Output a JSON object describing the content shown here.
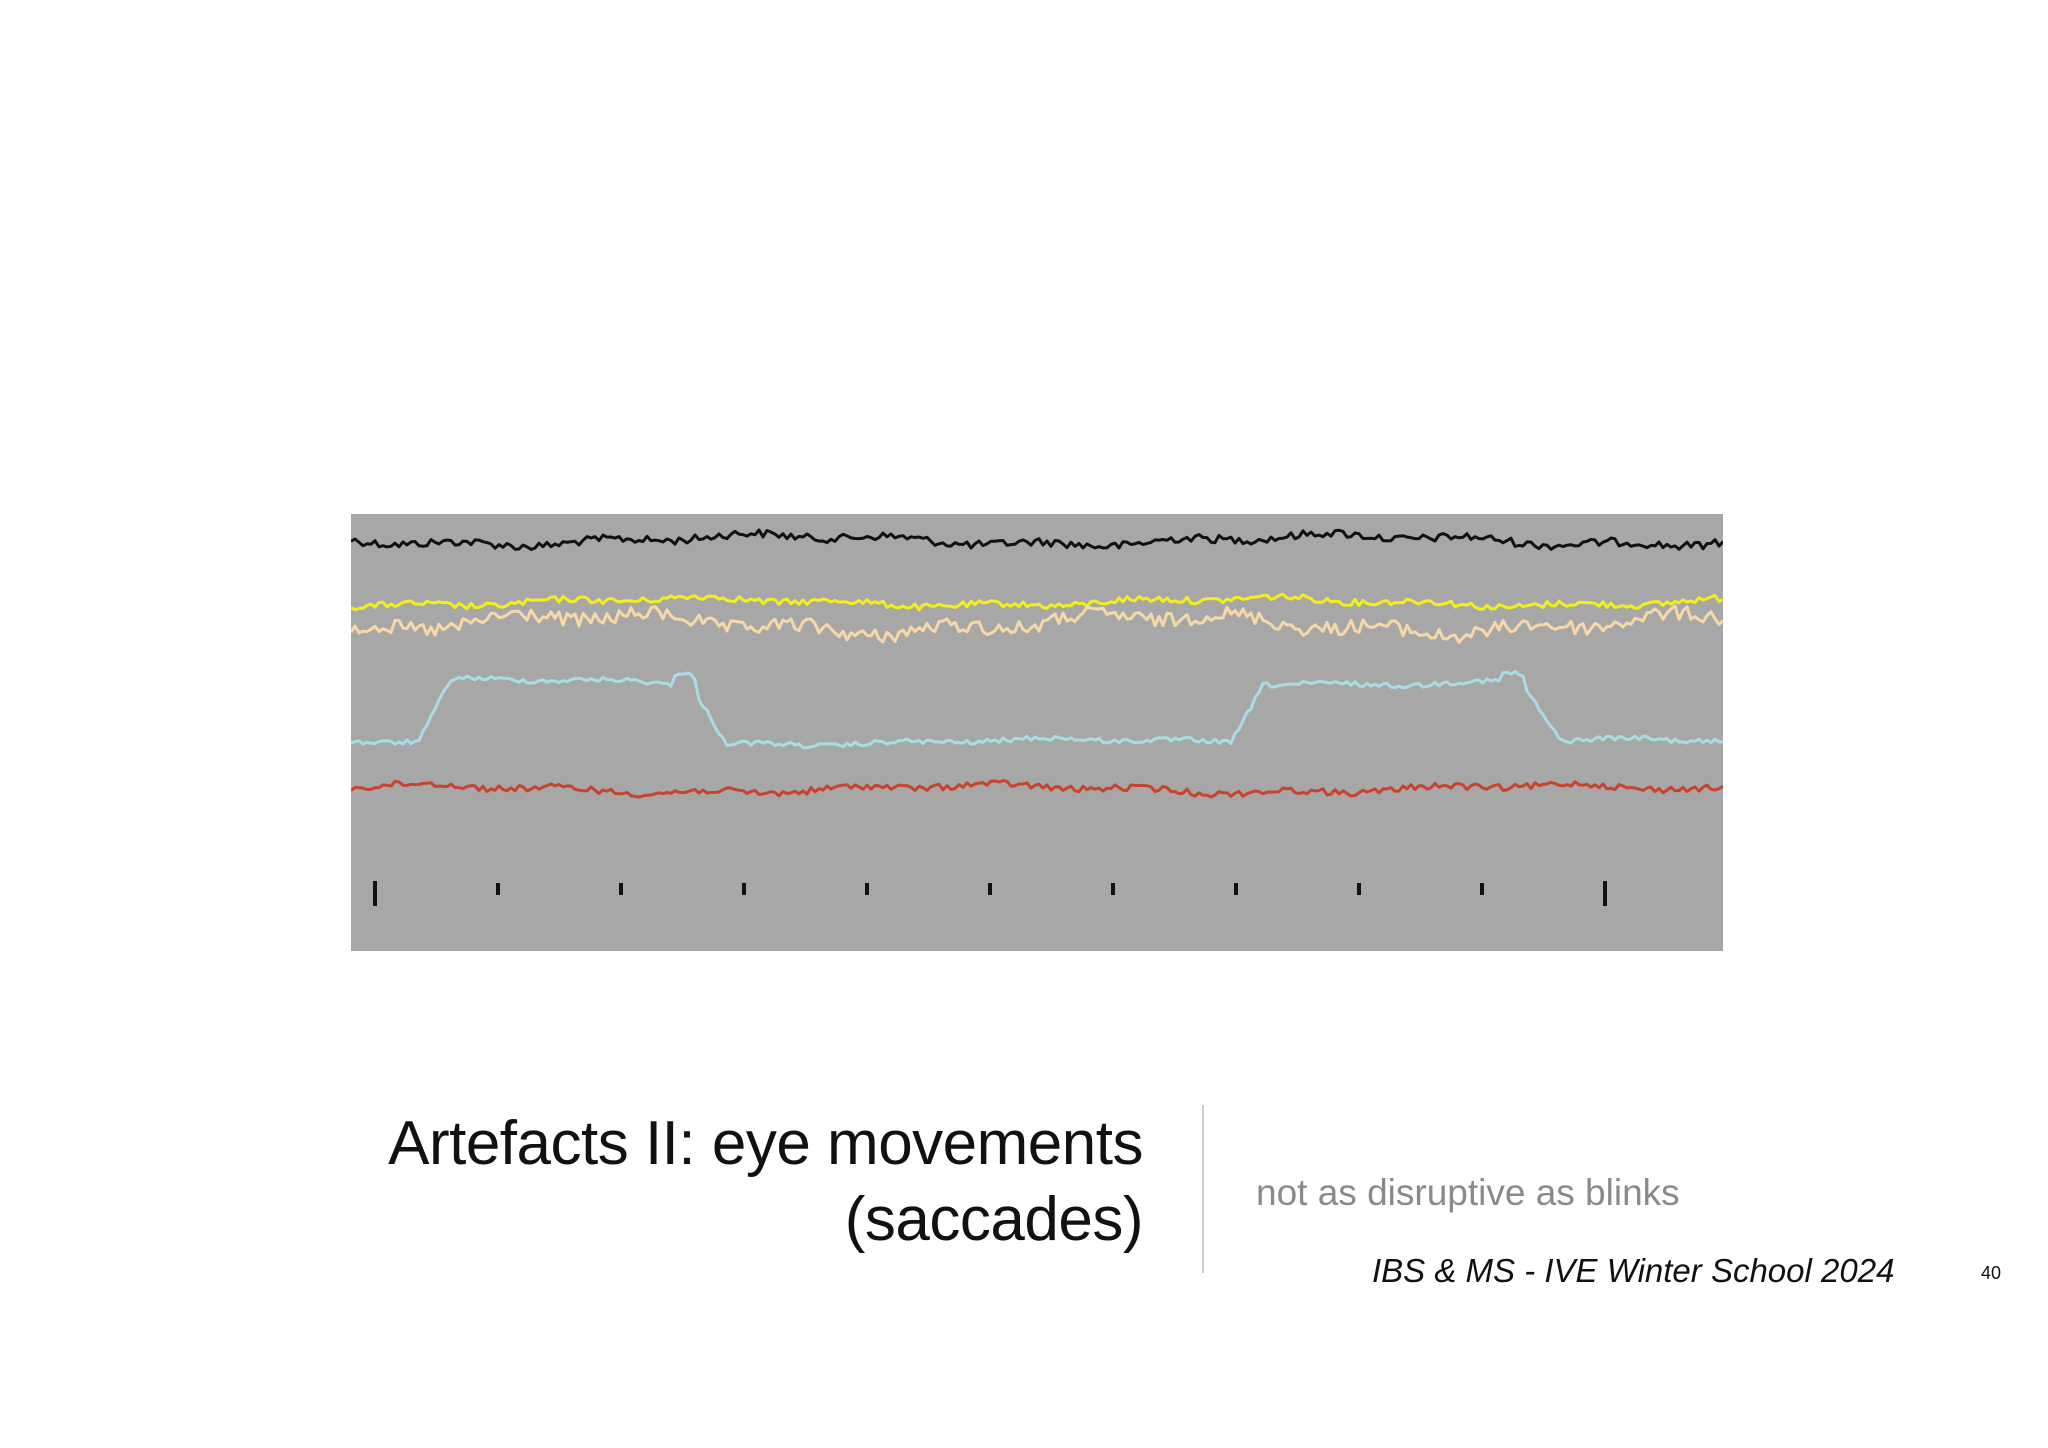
{
  "slide": {
    "title_line1": "Artefacts II: eye movements",
    "title_line2": "(saccades)",
    "subtitle": "not as disruptive as blinks",
    "footer": "IBS & MS - IVE Winter School 2024",
    "page_number": "40"
  },
  "eeg_figure": {
    "background_color": "#a7a7a7",
    "channels": [
      {
        "color": "#111111",
        "pattern": "noise"
      },
      {
        "color": "#f2ef1f",
        "pattern": "noise"
      },
      {
        "color": "#f6d9a8",
        "pattern": "noise"
      },
      {
        "color": "#a9dde6",
        "pattern": "saccade"
      },
      {
        "color": "#c8432f",
        "pattern": "noise"
      }
    ],
    "time_ticks": 11
  }
}
